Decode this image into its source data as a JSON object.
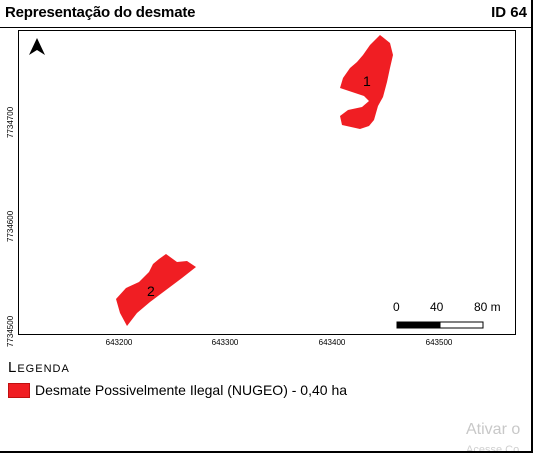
{
  "header": {
    "title": "Representação do desmate",
    "id_label": "ID 64"
  },
  "map": {
    "y_labels": [
      "7734700",
      "7734600",
      "7734500"
    ],
    "x_labels": [
      "643200",
      "643300",
      "643400",
      "643500"
    ],
    "polygon_labels": [
      "1",
      "2"
    ],
    "polygon_color": "#f01e23",
    "north_arrow": "north-arrow-icon",
    "scale": {
      "labels": [
        "0",
        "40",
        "80 m"
      ]
    }
  },
  "legend": {
    "title": "Legenda",
    "items": [
      {
        "label": "Desmate Possivelmente Ilegal (NUGEO) - 0,40 ha",
        "color": "#f01e23"
      }
    ]
  },
  "watermark": {
    "line1": "Ativar o",
    "line2": "Acesse Co"
  }
}
